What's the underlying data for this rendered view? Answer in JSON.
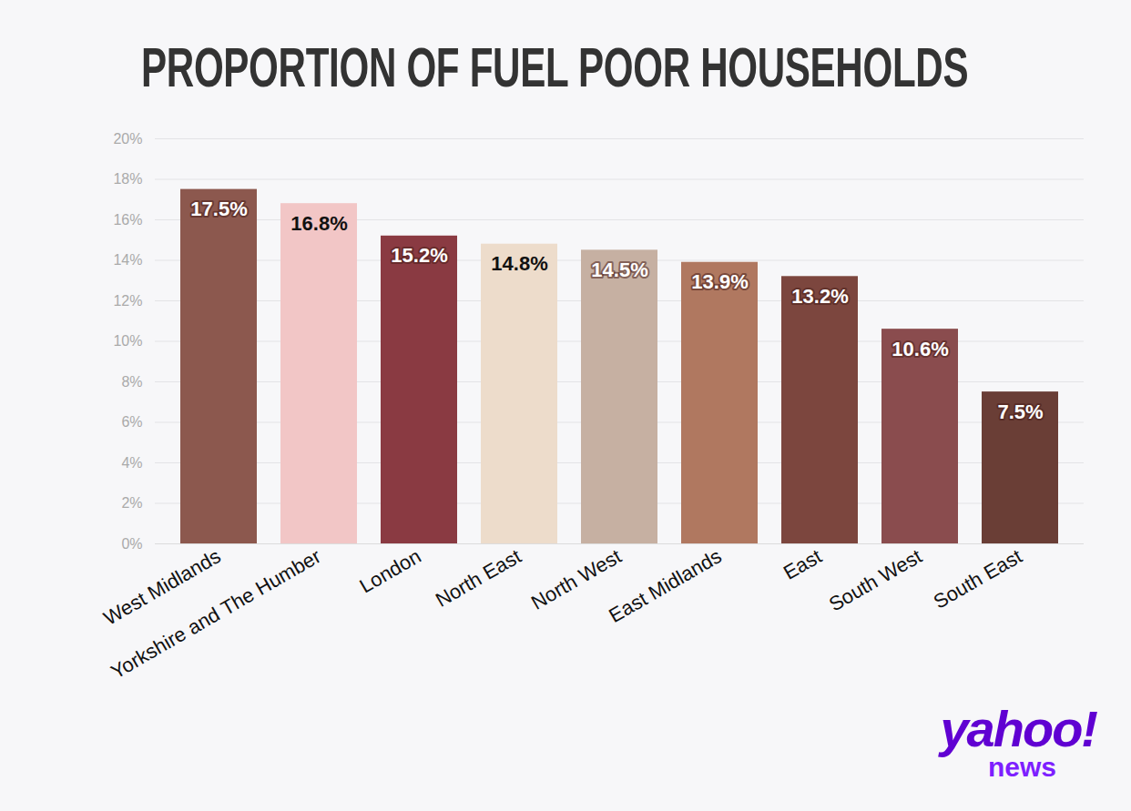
{
  "chart_data": {
    "type": "bar",
    "title": "PROPORTION OF FUEL POOR HOUSEHOLDS",
    "categories": [
      "West Midlands",
      "Yorkshire and The Humber",
      "London",
      "North East",
      "North West",
      "East Midlands",
      "East",
      "South West",
      "South East"
    ],
    "values": [
      17.5,
      16.8,
      15.2,
      14.8,
      14.5,
      13.9,
      13.2,
      10.6,
      7.5
    ],
    "value_labels": [
      "17.5%",
      "16.8%",
      "15.2%",
      "14.8%",
      "14.5%",
      "13.9%",
      "13.2%",
      "10.6%",
      "7.5%"
    ],
    "colors": [
      "#8c584e",
      "#f2c6c6",
      "#8a3a42",
      "#eddccb",
      "#c6b0a2",
      "#b07860",
      "#7c463e",
      "#8a4c4e",
      "#6a3e36"
    ],
    "ylim": [
      0,
      20
    ],
    "yticks": [
      {
        "value": 0,
        "label": "0%"
      },
      {
        "value": 2,
        "label": "2%"
      },
      {
        "value": 4,
        "label": "4%"
      },
      {
        "value": 6,
        "label": "6%"
      },
      {
        "value": 8,
        "label": "8%"
      },
      {
        "value": 10,
        "label": "10%"
      },
      {
        "value": 12,
        "label": "12%"
      },
      {
        "value": 14,
        "label": "14%"
      },
      {
        "value": 16,
        "label": "16%"
      },
      {
        "value": 18,
        "label": "18%"
      },
      {
        "value": 20,
        "label": "20%"
      }
    ],
    "grid": true,
    "data_labels": true,
    "annotations": [
      "yahoo!",
      "news"
    ]
  }
}
